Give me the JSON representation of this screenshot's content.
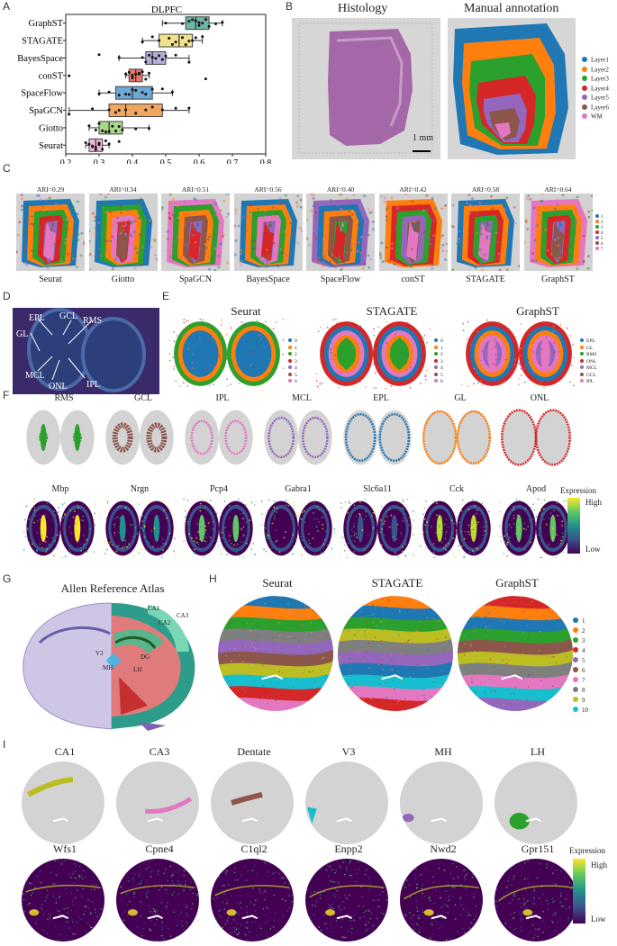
{
  "panels": {
    "a": "A",
    "b": "B",
    "c": "C",
    "d": "D",
    "e": "E",
    "f": "F",
    "g": "G",
    "h": "H",
    "i": "I"
  },
  "chart_data": {
    "type": "box",
    "title": "DLPFC",
    "xlim": [
      0.2,
      0.8
    ],
    "xticks": [
      "0.2",
      "0.3",
      "0.4",
      "0.5",
      "0.6",
      "0.7",
      "0.8"
    ],
    "categories": [
      "GraphST",
      "STAGATE",
      "BayesSpace",
      "conST",
      "SpaceFlow",
      "SpaGCN",
      "Giotto",
      "Seurat"
    ],
    "boxes": [
      {
        "name": "GraphST",
        "color": "#6cb7a8",
        "min": 0.49,
        "q1": 0.56,
        "median": 0.59,
        "q3": 0.63,
        "max": 0.67,
        "points": [
          0.5,
          0.55,
          0.58,
          0.59,
          0.6,
          0.61,
          0.62,
          0.63,
          0.65,
          0.67,
          0.57,
          0.6
        ]
      },
      {
        "name": "STAGATE",
        "color": "#f2e08a",
        "min": 0.43,
        "q1": 0.48,
        "median": 0.54,
        "q3": 0.58,
        "max": 0.61,
        "points": [
          0.43,
          0.46,
          0.48,
          0.51,
          0.53,
          0.55,
          0.57,
          0.58,
          0.59,
          0.61,
          0.52,
          0.56
        ]
      },
      {
        "name": "BayesSpace",
        "color": "#b7aedb",
        "min": 0.36,
        "q1": 0.44,
        "median": 0.46,
        "q3": 0.5,
        "max": 0.57,
        "points": [
          0.3,
          0.36,
          0.44,
          0.45,
          0.46,
          0.47,
          0.49,
          0.5,
          0.53,
          0.57,
          0.43,
          0.48
        ]
      },
      {
        "name": "conST",
        "color": "#e7776d",
        "min": 0.38,
        "q1": 0.39,
        "median": 0.41,
        "q3": 0.43,
        "max": 0.45,
        "points": [
          0.21,
          0.38,
          0.39,
          0.4,
          0.41,
          0.42,
          0.43,
          0.44,
          0.45,
          0.62,
          0.4,
          0.42
        ]
      },
      {
        "name": "SpaceFlow",
        "color": "#6fa7d6",
        "min": 0.3,
        "q1": 0.35,
        "median": 0.4,
        "q3": 0.46,
        "max": 0.52,
        "points": [
          0.3,
          0.33,
          0.36,
          0.38,
          0.4,
          0.41,
          0.43,
          0.46,
          0.49,
          0.52,
          0.39,
          0.44
        ]
      },
      {
        "name": "SpaGCN",
        "color": "#f0a65e",
        "min": 0.21,
        "q1": 0.33,
        "median": 0.38,
        "q3": 0.49,
        "max": 0.57,
        "points": [
          0.21,
          0.28,
          0.33,
          0.36,
          0.38,
          0.41,
          0.44,
          0.49,
          0.53,
          0.57,
          0.35,
          0.46
        ]
      },
      {
        "name": "Giotto",
        "color": "#a8d88a",
        "min": 0.27,
        "q1": 0.3,
        "median": 0.33,
        "q3": 0.37,
        "max": 0.45,
        "points": [
          0.27,
          0.29,
          0.31,
          0.32,
          0.33,
          0.35,
          0.37,
          0.41,
          0.45,
          0.3,
          0.34,
          0.36
        ]
      },
      {
        "name": "Seurat",
        "color": "#f0b8d6",
        "min": 0.26,
        "q1": 0.27,
        "median": 0.29,
        "q3": 0.31,
        "max": 0.33,
        "points": [
          0.26,
          0.27,
          0.28,
          0.29,
          0.3,
          0.31,
          0.32,
          0.33,
          0.28,
          0.3,
          0.36,
          0.29
        ]
      }
    ]
  },
  "b": {
    "histology_title": "Histology",
    "annotation_title": "Manual annotation",
    "scale": "1 mm",
    "legend": [
      {
        "label": "Layer1",
        "color": "#1f77b4"
      },
      {
        "label": "Layer2",
        "color": "#ff7f0e"
      },
      {
        "label": "Layer3",
        "color": "#2ca02c"
      },
      {
        "label": "Layer4",
        "color": "#d62728"
      },
      {
        "label": "Layer5",
        "color": "#9467bd"
      },
      {
        "label": "Layer6",
        "color": "#8c564b"
      },
      {
        "label": "WM",
        "color": "#e377c2"
      }
    ]
  },
  "c": {
    "methods": [
      {
        "name": "Seurat",
        "ari": "ARI=0.29"
      },
      {
        "name": "Giotto",
        "ari": "ARI=0.34"
      },
      {
        "name": "SpaGCN",
        "ari": "ARI=0.51"
      },
      {
        "name": "BayesSpace",
        "ari": "ARI=0.56"
      },
      {
        "name": "SpaceFlow",
        "ari": "ARI=0.40"
      },
      {
        "name": "conST",
        "ari": "ARI=0.42"
      },
      {
        "name": "STAGATE",
        "ari": "ARI=0.58"
      },
      {
        "name": "GraphST",
        "ari": "ARI=0.64"
      }
    ],
    "legend": [
      "1",
      "2",
      "3",
      "4",
      "5",
      "6",
      "7"
    ]
  },
  "d": {
    "labels": [
      "EPL",
      "GCL",
      "RMS",
      "GL",
      "MCL",
      "ONL",
      "IPL"
    ]
  },
  "e": {
    "methods": [
      "Seurat",
      "STAGATE",
      "GraphST"
    ],
    "numeric_legend": [
      "0",
      "1",
      "2",
      "3",
      "4",
      "5",
      "6"
    ],
    "named_legend": [
      "EPL",
      "GL",
      "RMS",
      "ONL",
      "MCL",
      "GCL",
      "IPL"
    ]
  },
  "f": {
    "regions": [
      "RMS",
      "GCL",
      "IPL",
      "MCL",
      "EPL",
      "GL",
      "ONL"
    ],
    "genes": [
      "Mbp",
      "Nrgn",
      "Pcp4",
      "Gabra1",
      "Slc6a11",
      "Cck",
      "Apod"
    ],
    "expr_title": "Expression",
    "high": "High",
    "low": "Low"
  },
  "g": {
    "title": "Allen Reference Atlas",
    "labels": [
      "CA1",
      "CA2",
      "CA3",
      "V3",
      "MH",
      "LH",
      "DG"
    ]
  },
  "h": {
    "methods": [
      "Seurat",
      "STAGATE",
      "GraphST"
    ],
    "legend": [
      "1",
      "2",
      "3",
      "4",
      "5",
      "6",
      "7",
      "8",
      "9",
      "10"
    ]
  },
  "i": {
    "regions": [
      "CA1",
      "CA3",
      "Dentate",
      "V3",
      "MH",
      "LH"
    ],
    "genes": [
      "Wfs1",
      "Cpne4",
      "C1ql2",
      "Enpp2",
      "Nwd2",
      "Gpr151"
    ],
    "expr_title": "Expression",
    "high": "High",
    "low": "Low"
  },
  "colors": {
    "tab10": [
      "#1f77b4",
      "#ff7f0e",
      "#2ca02c",
      "#d62728",
      "#9467bd",
      "#8c564b",
      "#e377c2",
      "#7f7f7f",
      "#bcbd22",
      "#17becf"
    ]
  }
}
